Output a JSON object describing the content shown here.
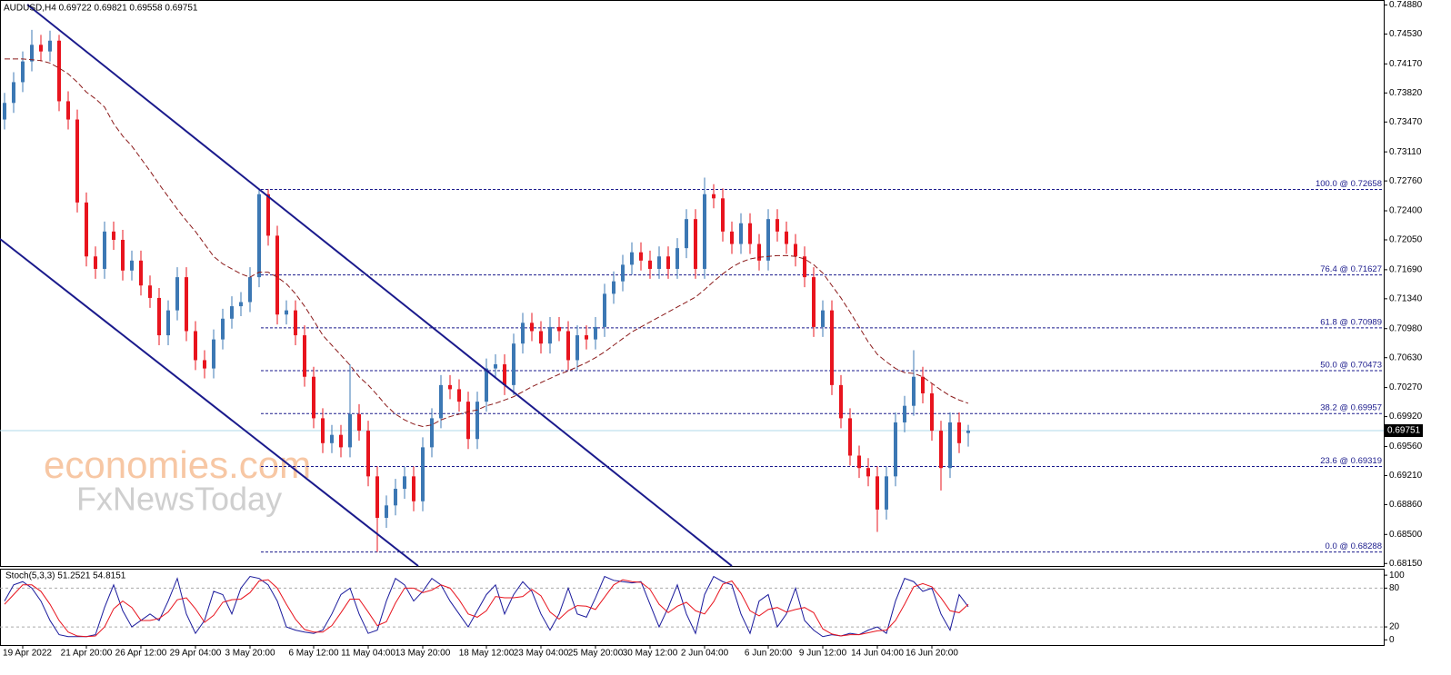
{
  "chart_data": {
    "type": "candlestick",
    "title": "AUDUSD,H4  0.69722 0.69821 0.69558 0.69751",
    "watermark": [
      "economies.com",
      "FxNewsToday"
    ],
    "up_color": "#3c78b4",
    "down_color": "#e8141e",
    "ma_color": "#8b1a1a",
    "fib_color": "#1a1a8c",
    "current_price_color": "#b0d8e8",
    "ylim": [
      0.6812,
      0.7494
    ],
    "yticks": [
      {
        "value": 0.7488,
        "label": "0.74880"
      },
      {
        "value": 0.7453,
        "label": "0.74530"
      },
      {
        "value": 0.7417,
        "label": "0.74170"
      },
      {
        "value": 0.7382,
        "label": "0.73820"
      },
      {
        "value": 0.7347,
        "label": "0.73470"
      },
      {
        "value": 0.7311,
        "label": "0.73110"
      },
      {
        "value": 0.7276,
        "label": "0.72760"
      },
      {
        "value": 0.724,
        "label": "0.72400"
      },
      {
        "value": 0.7205,
        "label": "0.72050"
      },
      {
        "value": 0.7169,
        "label": "0.71690"
      },
      {
        "value": 0.7134,
        "label": "0.71340"
      },
      {
        "value": 0.7098,
        "label": "0.70980"
      },
      {
        "value": 0.7063,
        "label": "0.70630"
      },
      {
        "value": 0.7027,
        "label": "0.70270"
      },
      {
        "value": 0.6992,
        "label": "0.69920"
      },
      {
        "value": 0.6956,
        "label": "0.69560"
      },
      {
        "value": 0.6921,
        "label": "0.69210"
      },
      {
        "value": 0.6886,
        "label": "0.68860"
      },
      {
        "value": 0.685,
        "label": "0.68500"
      },
      {
        "value": 0.6815,
        "label": "0.68150"
      }
    ],
    "current_price": 0.69751,
    "fib_levels": [
      {
        "value": 0.72658,
        "label": "100.0 @ 0.72658"
      },
      {
        "value": 0.71627,
        "label": "76.4 @ 0.71627"
      },
      {
        "value": 0.70989,
        "label": "61.8 @ 0.70989"
      },
      {
        "value": 0.70473,
        "label": "50.0 @ 0.70473"
      },
      {
        "value": 0.69957,
        "label": "38.2 @ 0.69957"
      },
      {
        "value": 0.69319,
        "label": "23.6 @ 0.69319"
      },
      {
        "value": 0.68288,
        "label": "0.0 @ 0.68288"
      }
    ],
    "categories": [
      null,
      null,
      "19 Apr 2022",
      null,
      null,
      null,
      null,
      null,
      null,
      "21 Apr 20:00",
      null,
      null,
      null,
      null,
      null,
      "26 Apr 12:00",
      null,
      null,
      null,
      null,
      null,
      "29 Apr 04:00",
      null,
      null,
      null,
      null,
      null,
      "3 May 20:00",
      null,
      null,
      null,
      null,
      null,
      null,
      "6 May 12:00",
      null,
      null,
      null,
      null,
      null,
      "11 May 04:00",
      null,
      null,
      null,
      null,
      null,
      "13 May 20:00",
      null,
      null,
      null,
      null,
      null,
      null,
      "18 May 12:00",
      null,
      null,
      null,
      null,
      null,
      "23 May 04:00",
      null,
      null,
      null,
      null,
      null,
      "25 May 20:00",
      null,
      null,
      null,
      null,
      null,
      "30 May 12:00",
      null,
      null,
      null,
      null,
      null,
      "2 Jun 04:00",
      null,
      null,
      null,
      null,
      null,
      null,
      "6 Jun 20:00",
      null,
      null,
      null,
      null,
      null,
      "9 Jun 12:00",
      null,
      null,
      null,
      null,
      null,
      "14 Jun 04:00",
      null,
      null,
      null,
      null,
      null,
      "16 Jun 20:00",
      null,
      null,
      null,
      null
    ],
    "ohlc": [
      [
        0.735,
        0.7382,
        0.7338,
        0.737
      ],
      [
        0.737,
        0.7407,
        0.7358,
        0.7395
      ],
      [
        0.7395,
        0.7432,
        0.7383,
        0.742
      ],
      [
        0.742,
        0.7458,
        0.7408,
        0.744
      ],
      [
        0.744,
        0.7452,
        0.742,
        0.7432
      ],
      [
        0.7432,
        0.7457,
        0.742,
        0.7445
      ],
      [
        0.7445,
        0.7452,
        0.736,
        0.7372
      ],
      [
        0.7372,
        0.7384,
        0.7338,
        0.735
      ],
      [
        0.735,
        0.7362,
        0.7238,
        0.725
      ],
      [
        0.725,
        0.7262,
        0.7173,
        0.7185
      ],
      [
        0.7185,
        0.7197,
        0.7158,
        0.717
      ],
      [
        0.717,
        0.7227,
        0.7158,
        0.7215
      ],
      [
        0.7215,
        0.7227,
        0.7193,
        0.7205
      ],
      [
        0.7205,
        0.7217,
        0.7156,
        0.7168
      ],
      [
        0.7168,
        0.7192,
        0.7156,
        0.718
      ],
      [
        0.718,
        0.7192,
        0.7138,
        0.715
      ],
      [
        0.715,
        0.7162,
        0.7123,
        0.7135
      ],
      [
        0.7135,
        0.7147,
        0.7078,
        0.709
      ],
      [
        0.709,
        0.7132,
        0.7078,
        0.712
      ],
      [
        0.712,
        0.7172,
        0.7108,
        0.716
      ],
      [
        0.716,
        0.7172,
        0.7083,
        0.7095
      ],
      [
        0.7095,
        0.7107,
        0.7048,
        0.706
      ],
      [
        0.706,
        0.7072,
        0.7038,
        0.705
      ],
      [
        0.705,
        0.7097,
        0.7038,
        0.7085
      ],
      [
        0.7085,
        0.7122,
        0.7073,
        0.711
      ],
      [
        0.711,
        0.7137,
        0.7098,
        0.7125
      ],
      [
        0.7125,
        0.7142,
        0.7113,
        0.713
      ],
      [
        0.713,
        0.7172,
        0.7118,
        0.716
      ],
      [
        0.716,
        0.7266,
        0.7148,
        0.726
      ],
      [
        0.726,
        0.7266,
        0.7198,
        0.721
      ],
      [
        0.721,
        0.7222,
        0.7103,
        0.7115
      ],
      [
        0.7115,
        0.7132,
        0.7103,
        0.712
      ],
      [
        0.712,
        0.7132,
        0.7078,
        0.709
      ],
      [
        0.709,
        0.7102,
        0.7028,
        0.704
      ],
      [
        0.704,
        0.7052,
        0.6978,
        0.699
      ],
      [
        0.699,
        0.7002,
        0.6948,
        0.696
      ],
      [
        0.696,
        0.6982,
        0.6948,
        0.697
      ],
      [
        0.697,
        0.6982,
        0.6943,
        0.6955
      ],
      [
        0.6955,
        0.7055,
        0.6943,
        0.6995
      ],
      [
        0.6995,
        0.7007,
        0.6963,
        0.6975
      ],
      [
        0.6975,
        0.6987,
        0.6908,
        0.692
      ],
      [
        0.692,
        0.6932,
        0.6829,
        0.687
      ],
      [
        0.687,
        0.6897,
        0.6858,
        0.6885
      ],
      [
        0.6885,
        0.6917,
        0.6873,
        0.6905
      ],
      [
        0.6905,
        0.6932,
        0.6893,
        0.692
      ],
      [
        0.692,
        0.6932,
        0.6878,
        0.689
      ],
      [
        0.689,
        0.6967,
        0.6878,
        0.6955
      ],
      [
        0.6955,
        0.7002,
        0.6943,
        0.699
      ],
      [
        0.699,
        0.7042,
        0.6978,
        0.703
      ],
      [
        0.703,
        0.7042,
        0.7013,
        0.7025
      ],
      [
        0.7025,
        0.7037,
        0.6998,
        0.701
      ],
      [
        0.701,
        0.7022,
        0.6953,
        0.6965
      ],
      [
        0.6965,
        0.7022,
        0.6953,
        0.701
      ],
      [
        0.701,
        0.7062,
        0.6998,
        0.705
      ],
      [
        0.705,
        0.7067,
        0.7038,
        0.7055
      ],
      [
        0.7055,
        0.7067,
        0.7018,
        0.703
      ],
      [
        0.703,
        0.7092,
        0.7018,
        0.708
      ],
      [
        0.708,
        0.7117,
        0.7068,
        0.7105
      ],
      [
        0.7105,
        0.7117,
        0.7083,
        0.7095
      ],
      [
        0.7095,
        0.7107,
        0.7068,
        0.708
      ],
      [
        0.708,
        0.7112,
        0.7068,
        0.71
      ],
      [
        0.71,
        0.7112,
        0.7083,
        0.7095
      ],
      [
        0.7095,
        0.7107,
        0.7048,
        0.706
      ],
      [
        0.706,
        0.7102,
        0.7048,
        0.709
      ],
      [
        0.709,
        0.7102,
        0.7073,
        0.7085
      ],
      [
        0.7085,
        0.7112,
        0.7073,
        0.71
      ],
      [
        0.71,
        0.7152,
        0.7088,
        0.714
      ],
      [
        0.714,
        0.7167,
        0.7128,
        0.7155
      ],
      [
        0.7155,
        0.7187,
        0.7143,
        0.7175
      ],
      [
        0.7175,
        0.7202,
        0.7163,
        0.719
      ],
      [
        0.719,
        0.7202,
        0.7168,
        0.718
      ],
      [
        0.718,
        0.7192,
        0.7158,
        0.717
      ],
      [
        0.717,
        0.7197,
        0.7158,
        0.7185
      ],
      [
        0.7185,
        0.7197,
        0.7158,
        0.717
      ],
      [
        0.717,
        0.7207,
        0.7158,
        0.7195
      ],
      [
        0.7195,
        0.7242,
        0.7183,
        0.723
      ],
      [
        0.723,
        0.7242,
        0.7158,
        0.717
      ],
      [
        0.717,
        0.728,
        0.7158,
        0.726
      ],
      [
        0.726,
        0.7272,
        0.7243,
        0.7255
      ],
      [
        0.7255,
        0.7267,
        0.7203,
        0.7215
      ],
      [
        0.7215,
        0.7227,
        0.7188,
        0.72
      ],
      [
        0.72,
        0.7237,
        0.7188,
        0.7225
      ],
      [
        0.7225,
        0.7237,
        0.7188,
        0.72
      ],
      [
        0.72,
        0.7212,
        0.7168,
        0.718
      ],
      [
        0.718,
        0.7242,
        0.7168,
        0.723
      ],
      [
        0.723,
        0.7242,
        0.7203,
        0.7215
      ],
      [
        0.7215,
        0.7227,
        0.7188,
        0.72
      ],
      [
        0.72,
        0.7212,
        0.7173,
        0.7185
      ],
      [
        0.7185,
        0.7197,
        0.7148,
        0.716
      ],
      [
        0.716,
        0.7172,
        0.7088,
        0.71
      ],
      [
        0.71,
        0.7132,
        0.7088,
        0.712
      ],
      [
        0.712,
        0.7132,
        0.7018,
        0.703
      ],
      [
        0.703,
        0.7042,
        0.6978,
        0.699
      ],
      [
        0.699,
        0.7002,
        0.6933,
        0.6945
      ],
      [
        0.6945,
        0.6957,
        0.6918,
        0.693
      ],
      [
        0.693,
        0.6942,
        0.6908,
        0.692
      ],
      [
        0.692,
        0.6932,
        0.6853,
        0.688
      ],
      [
        0.688,
        0.6932,
        0.6868,
        0.692
      ],
      [
        0.692,
        0.6997,
        0.6908,
        0.6985
      ],
      [
        0.6985,
        0.7017,
        0.6973,
        0.7005
      ],
      [
        0.7005,
        0.7072,
        0.6993,
        0.704
      ],
      [
        0.704,
        0.7052,
        0.7008,
        0.702
      ],
      [
        0.702,
        0.7032,
        0.6963,
        0.6975
      ],
      [
        0.6975,
        0.6987,
        0.6903,
        0.693
      ],
      [
        0.693,
        0.6997,
        0.6918,
        0.6985
      ],
      [
        0.6985,
        0.6997,
        0.6948,
        0.696
      ],
      [
        0.69722,
        0.69821,
        0.69558,
        0.69751
      ]
    ],
    "ma": [
      0.7423,
      0.7423,
      0.7423,
      0.7422,
      0.7421,
      0.7418,
      0.7412,
      0.7405,
      0.7395,
      0.7383,
      0.7375,
      0.7365,
      0.7345,
      0.733,
      0.7318,
      0.7303,
      0.7288,
      0.7272,
      0.7257,
      0.7242,
      0.7228,
      0.7215,
      0.72,
      0.7185,
      0.7176,
      0.717,
      0.7164,
      0.716,
      0.7166,
      0.7166,
      0.716,
      0.7152,
      0.714,
      0.7125,
      0.7108,
      0.709,
      0.7078,
      0.7066,
      0.7054,
      0.704,
      0.703,
      0.7018,
      0.7005,
      0.6995,
      0.6988,
      0.6983,
      0.698,
      0.6982,
      0.6988,
      0.6992,
      0.6995,
      0.6998,
      0.7,
      0.7005,
      0.7008,
      0.7012,
      0.7016,
      0.7022,
      0.7028,
      0.7033,
      0.7038,
      0.7043,
      0.7047,
      0.7052,
      0.7057,
      0.7063,
      0.707,
      0.7078,
      0.7086,
      0.7094,
      0.71,
      0.7106,
      0.7112,
      0.7118,
      0.7124,
      0.713,
      0.7136,
      0.7145,
      0.7155,
      0.7164,
      0.7172,
      0.7178,
      0.7182,
      0.7184,
      0.7185,
      0.7186,
      0.7186,
      0.7185,
      0.7182,
      0.7175,
      0.7165,
      0.715,
      0.7135,
      0.7118,
      0.71,
      0.7082,
      0.7067,
      0.7058,
      0.705,
      0.7045,
      0.7044,
      0.704,
      0.7032,
      0.7024,
      0.7017,
      0.7012,
      0.7008
    ],
    "stochastic": {
      "label": "Stoch(5,3,3) 51.2521 54.8151",
      "ylim": [
        -8,
        110
      ],
      "yticks": [
        100,
        80,
        20,
        0
      ],
      "levels": [
        80,
        20
      ],
      "series": [
        {
          "color": "#1a1a9c",
          "values": [
            60,
            85,
            90,
            80,
            60,
            30,
            8,
            5,
            5,
            5,
            8,
            50,
            85,
            45,
            20,
            30,
            40,
            30,
            60,
            95,
            40,
            10,
            30,
            75,
            70,
            40,
            80,
            98,
            95,
            85,
            60,
            20,
            15,
            12,
            10,
            15,
            40,
            70,
            80,
            40,
            10,
            15,
            60,
            95,
            85,
            60,
            75,
            95,
            85,
            60,
            40,
            20,
            45,
            70,
            85,
            40,
            70,
            90,
            75,
            40,
            15,
            40,
            80,
            40,
            35,
            65,
            98,
            92,
            90,
            88,
            90,
            55,
            20,
            50,
            85,
            40,
            10,
            70,
            98,
            90,
            85,
            40,
            10,
            60,
            70,
            20,
            40,
            80,
            30,
            15,
            5,
            8,
            6,
            10,
            8,
            15,
            20,
            10,
            60,
            95,
            90,
            75,
            80,
            40,
            15,
            70,
            51.2521
          ]
        },
        {
          "color": "#e8141e",
          "values": [
            55,
            70,
            85,
            85,
            75,
            55,
            30,
            12,
            6,
            5,
            6,
            20,
            48,
            60,
            50,
            30,
            30,
            33,
            43,
            62,
            65,
            48,
            27,
            38,
            58,
            62,
            63,
            73,
            91,
            93,
            80,
            55,
            32,
            16,
            12,
            12,
            22,
            42,
            63,
            63,
            43,
            22,
            28,
            57,
            80,
            80,
            73,
            77,
            85,
            80,
            62,
            40,
            35,
            45,
            67,
            65,
            65,
            67,
            78,
            68,
            43,
            32,
            45,
            53,
            52,
            47,
            66,
            85,
            93,
            90,
            89,
            78,
            55,
            42,
            52,
            58,
            45,
            40,
            59,
            86,
            91,
            72,
            45,
            37,
            47,
            50,
            43,
            47,
            50,
            42,
            17,
            9,
            6,
            8,
            8,
            11,
            14,
            15,
            30,
            55,
            82,
            87,
            82,
            65,
            45,
            42,
            54.8151
          ]
        }
      ]
    }
  }
}
